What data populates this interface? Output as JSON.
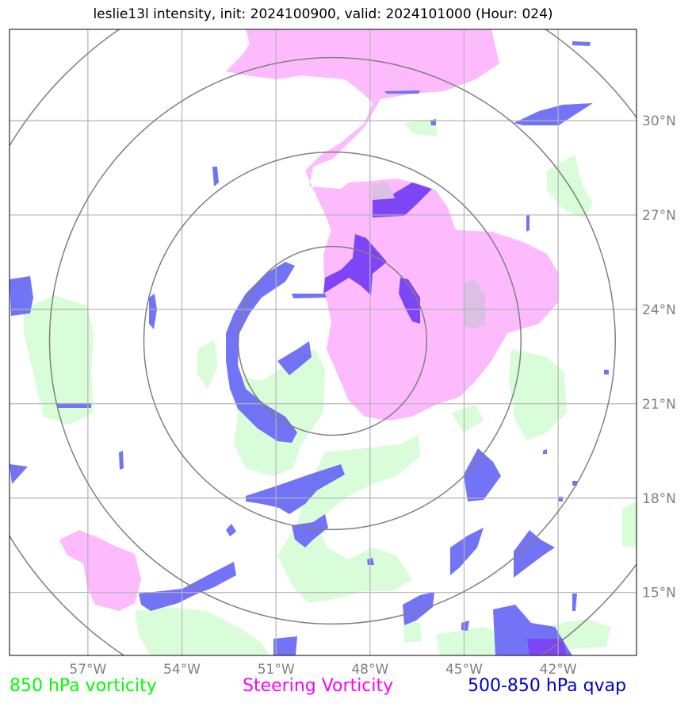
{
  "title": "leslie13l intensity, init: 2024100900, valid: 2024101000 (Hour: 024)",
  "lon_labels": [
    "57°W",
    "54°W",
    "51°W",
    "48°W",
    "45°W",
    "42°W"
  ],
  "lat_labels": [
    "30°N",
    "27°N",
    "24°N",
    "21°N",
    "18°N",
    "15°N"
  ],
  "legend": [
    {
      "label": "850 hPa vorticity",
      "color": "#00ff00"
    },
    {
      "label": "Steering Vorticity",
      "color": "#ff00ff"
    },
    {
      "label": "500-850 hPa qvap",
      "color": "#0000cc"
    }
  ],
  "colors": {
    "vorticity_850_fill": "#d9fdd9",
    "steering_fill": "#fdbafd",
    "qvap_fill": "#6b6bf5",
    "overlap_fill": "#7d45f5",
    "range_rings": "#808080",
    "grid": "#b4b4b4"
  },
  "map_extent": {
    "lon_min": -59.5,
    "lon_max": -39.5,
    "lat_min": 13,
    "lat_max": 32.9
  },
  "grid_lons": [
    -57,
    -54,
    -51,
    -48,
    -45,
    -42
  ],
  "grid_lats": [
    30,
    27,
    24,
    21,
    18,
    15
  ],
  "storm_center": {
    "lon": -49.2,
    "lat": 23.0
  },
  "range_ring_radii_deg": [
    3,
    6,
    9,
    12
  ]
}
